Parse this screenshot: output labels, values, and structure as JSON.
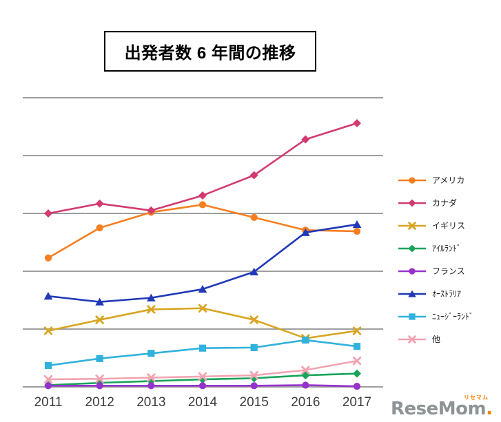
{
  "logo": {
    "text": "ReseMom",
    "dot": ".",
    "ruby": "リセマム",
    "text_color": "#8e9396",
    "accent_color": "#f08300"
  },
  "chart_data": {
    "type": "line",
    "title": "出発者数 6 年間の推移",
    "xlabel": "",
    "ylabel": "",
    "x": [
      2011,
      2012,
      2013,
      2014,
      2015,
      2016,
      2017
    ],
    "y_tick_labels": [],
    "ylim": [
      0,
      5
    ],
    "grid": true,
    "grid_color": "#9e9e9e",
    "legend_position": "right",
    "note_units": "y-axis shown without numeric labels; values estimated in gridline units",
    "series": [
      {
        "key": "america",
        "name": "アメリカ",
        "color": "#f57e20",
        "marker": "circle",
        "values": [
          2.23,
          2.75,
          3.02,
          3.15,
          2.93,
          2.71,
          2.69
        ]
      },
      {
        "key": "canada",
        "name": "カナダ",
        "color": "#d23a72",
        "marker": "diamond",
        "values": [
          3.0,
          3.17,
          3.05,
          3.31,
          3.66,
          4.28,
          4.56
        ]
      },
      {
        "key": "uk",
        "name": "イギリス",
        "color": "#d7a521",
        "marker": "x",
        "values": [
          0.97,
          1.16,
          1.34,
          1.36,
          1.16,
          0.84,
          0.97
        ]
      },
      {
        "key": "ireland",
        "name": "ｱｲﾙﾗﾝﾄﾞ",
        "color": "#18a45a",
        "marker": "diamond",
        "values": [
          0.03,
          0.07,
          0.1,
          0.13,
          0.15,
          0.2,
          0.23
        ]
      },
      {
        "key": "france",
        "name": "フランス",
        "color": "#9632cc",
        "marker": "circle",
        "values": [
          0.02,
          0.02,
          0.02,
          0.02,
          0.02,
          0.03,
          0.01
        ]
      },
      {
        "key": "australia",
        "name": "ｵｰｽﾄﾗﾘｱ",
        "color": "#2139b8",
        "marker": "triangle",
        "values": [
          1.57,
          1.47,
          1.54,
          1.69,
          1.99,
          2.67,
          2.81
        ]
      },
      {
        "key": "new-zealand",
        "name": "ﾆｭｰｼﾞｰﾗﾝﾄﾞ",
        "color": "#30b2dc",
        "marker": "square",
        "values": [
          0.37,
          0.49,
          0.58,
          0.67,
          0.68,
          0.81,
          0.7
        ]
      },
      {
        "key": "others",
        "name": "他",
        "color": "#f2a3b1",
        "marker": "x",
        "values": [
          0.13,
          0.14,
          0.16,
          0.18,
          0.2,
          0.29,
          0.45
        ]
      }
    ]
  }
}
